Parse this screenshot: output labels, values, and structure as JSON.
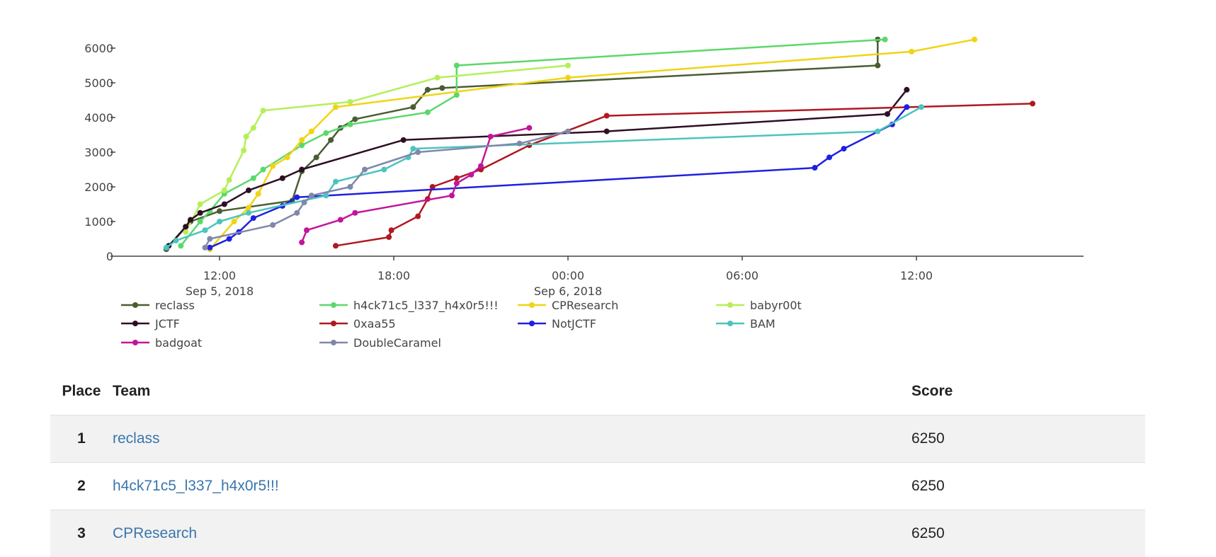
{
  "chart_data": {
    "type": "line",
    "xaxis": {
      "type": "date",
      "range": [
        "2018-09-05T08:30",
        "2018-09-06T14:00"
      ],
      "ticks": [
        {
          "t": "2018-09-05T12:00",
          "label": "12:00",
          "sublabel": "Sep 5, 2018"
        },
        {
          "t": "2018-09-05T18:00",
          "label": "18:00",
          "sublabel": ""
        },
        {
          "t": "2018-09-06T00:00",
          "label": "00:00",
          "sublabel": "Sep 6, 2018"
        },
        {
          "t": "2018-09-06T06:00",
          "label": "06:00",
          "sublabel": ""
        },
        {
          "t": "2018-09-06T12:00",
          "label": "12:00",
          "sublabel": ""
        }
      ]
    },
    "yaxis": {
      "range": [
        0,
        6300
      ],
      "ticks": [
        0,
        1000,
        2000,
        3000,
        4000,
        5000,
        6000
      ]
    },
    "legend_placement": "bottom",
    "series": [
      {
        "name": "reclass",
        "color": "#4a5d32",
        "points": [
          [
            "2018-09-05T10:10",
            200
          ],
          [
            "2018-09-05T11:00",
            1000
          ],
          [
            "2018-09-05T12:00",
            1300
          ],
          [
            "2018-09-05T14:30",
            1600
          ],
          [
            "2018-09-05T14:50",
            2450
          ],
          [
            "2018-09-05T15:20",
            2850
          ],
          [
            "2018-09-05T15:50",
            3350
          ],
          [
            "2018-09-05T16:10",
            3700
          ],
          [
            "2018-09-05T16:40",
            3950
          ],
          [
            "2018-09-05T18:40",
            4300
          ],
          [
            "2018-09-05T19:10",
            4800
          ],
          [
            "2018-09-05T19:40",
            4850
          ],
          [
            "2018-09-06T10:40",
            5500
          ],
          [
            "2018-09-06T10:40",
            6250
          ]
        ]
      },
      {
        "name": "h4ck71c5_l337_h4x0r5!!!",
        "color": "#5cd86a",
        "points": [
          [
            "2018-09-05T10:40",
            300
          ],
          [
            "2018-09-05T11:20",
            1000
          ],
          [
            "2018-09-05T11:40",
            1300
          ],
          [
            "2018-09-05T12:10",
            1800
          ],
          [
            "2018-09-05T13:10",
            2250
          ],
          [
            "2018-09-05T13:30",
            2500
          ],
          [
            "2018-09-05T14:50",
            3200
          ],
          [
            "2018-09-05T15:40",
            3550
          ],
          [
            "2018-09-05T16:30",
            3800
          ],
          [
            "2018-09-05T19:10",
            4150
          ],
          [
            "2018-09-05T20:10",
            4650
          ],
          [
            "2018-09-05T20:10",
            5500
          ],
          [
            "2018-09-06T10:55",
            6250
          ]
        ]
      },
      {
        "name": "CPResearch",
        "color": "#f0d415",
        "points": [
          [
            "2018-09-05T11:40",
            200
          ],
          [
            "2018-09-05T12:30",
            1000
          ],
          [
            "2018-09-05T13:00",
            1400
          ],
          [
            "2018-09-05T13:20",
            1800
          ],
          [
            "2018-09-05T13:50",
            2600
          ],
          [
            "2018-09-05T14:20",
            2850
          ],
          [
            "2018-09-05T14:50",
            3350
          ],
          [
            "2018-09-05T15:10",
            3600
          ],
          [
            "2018-09-05T16:00",
            4300
          ],
          [
            "2018-09-06T00:00",
            5150
          ],
          [
            "2018-09-06T11:50",
            5900
          ],
          [
            "2018-09-06T14:00",
            6250
          ]
        ]
      },
      {
        "name": "babyr00t",
        "color": "#b5ef58",
        "points": [
          [
            "2018-09-05T10:50",
            700
          ],
          [
            "2018-09-05T11:20",
            1500
          ],
          [
            "2018-09-05T12:10",
            1900
          ],
          [
            "2018-09-05T12:20",
            2200
          ],
          [
            "2018-09-05T12:50",
            3050
          ],
          [
            "2018-09-05T12:55",
            3450
          ],
          [
            "2018-09-05T13:10",
            3700
          ],
          [
            "2018-09-05T13:30",
            4200
          ],
          [
            "2018-09-05T16:30",
            4450
          ],
          [
            "2018-09-05T19:30",
            5150
          ],
          [
            "2018-09-06T00:00",
            5500
          ]
        ]
      },
      {
        "name": "JCTF",
        "color": "#2e0f24",
        "points": [
          [
            "2018-09-05T10:15",
            300
          ],
          [
            "2018-09-05T10:50",
            850
          ],
          [
            "2018-09-05T11:00",
            1050
          ],
          [
            "2018-09-05T11:20",
            1250
          ],
          [
            "2018-09-05T12:10",
            1500
          ],
          [
            "2018-09-05T13:00",
            1900
          ],
          [
            "2018-09-05T14:10",
            2250
          ],
          [
            "2018-09-05T14:50",
            2500
          ],
          [
            "2018-09-05T18:20",
            3350
          ],
          [
            "2018-09-06T01:20",
            3600
          ],
          [
            "2018-09-06T11:00",
            4100
          ],
          [
            "2018-09-06T11:40",
            4800
          ]
        ]
      },
      {
        "name": "0xaa55",
        "color": "#b01822",
        "points": [
          [
            "2018-09-05T16:00",
            300
          ],
          [
            "2018-09-05T17:50",
            550
          ],
          [
            "2018-09-05T17:55",
            750
          ],
          [
            "2018-09-05T18:50",
            1150
          ],
          [
            "2018-09-05T19:10",
            1650
          ],
          [
            "2018-09-05T19:20",
            2000
          ],
          [
            "2018-09-05T20:10",
            2250
          ],
          [
            "2018-09-05T21:00",
            2500
          ],
          [
            "2018-09-05T22:40",
            3200
          ],
          [
            "2018-09-06T01:20",
            4050
          ],
          [
            "2018-09-06T16:00",
            4400
          ]
        ]
      },
      {
        "name": "NotJCTF",
        "color": "#2020e0",
        "points": [
          [
            "2018-09-05T11:40",
            250
          ],
          [
            "2018-09-05T12:20",
            500
          ],
          [
            "2018-09-05T12:40",
            700
          ],
          [
            "2018-09-05T13:10",
            1100
          ],
          [
            "2018-09-05T14:10",
            1450
          ],
          [
            "2018-09-05T14:40",
            1700
          ],
          [
            "2018-09-06T08:30",
            2550
          ],
          [
            "2018-09-06T09:00",
            2850
          ],
          [
            "2018-09-06T09:30",
            3100
          ],
          [
            "2018-09-06T11:10",
            3800
          ],
          [
            "2018-09-06T11:40",
            4300
          ]
        ]
      },
      {
        "name": "BAM",
        "color": "#4dc4bd",
        "points": [
          [
            "2018-09-05T10:10",
            250
          ],
          [
            "2018-09-05T10:30",
            450
          ],
          [
            "2018-09-05T11:30",
            750
          ],
          [
            "2018-09-05T12:00",
            1000
          ],
          [
            "2018-09-05T13:00",
            1250
          ],
          [
            "2018-09-05T15:40",
            1750
          ],
          [
            "2018-09-05T16:00",
            2150
          ],
          [
            "2018-09-05T17:40",
            2500
          ],
          [
            "2018-09-05T18:30",
            2850
          ],
          [
            "2018-09-05T18:40",
            3100
          ],
          [
            "2018-09-06T10:40",
            3600
          ],
          [
            "2018-09-06T12:10",
            4300
          ]
        ]
      },
      {
        "name": "badgoat",
        "color": "#c2159a",
        "points": [
          [
            "2018-09-05T14:50",
            400
          ],
          [
            "2018-09-05T15:00",
            750
          ],
          [
            "2018-09-05T16:10",
            1050
          ],
          [
            "2018-09-05T16:40",
            1250
          ],
          [
            "2018-09-05T20:00",
            1750
          ],
          [
            "2018-09-05T20:10",
            2100
          ],
          [
            "2018-09-05T20:40",
            2350
          ],
          [
            "2018-09-05T21:00",
            2600
          ],
          [
            "2018-09-05T21:20",
            3450
          ],
          [
            "2018-09-05T22:40",
            3700
          ]
        ]
      },
      {
        "name": "DoubleCaramel",
        "color": "#8088aa",
        "points": [
          [
            "2018-09-05T11:30",
            250
          ],
          [
            "2018-09-05T11:40",
            500
          ],
          [
            "2018-09-05T13:50",
            900
          ],
          [
            "2018-09-05T14:40",
            1250
          ],
          [
            "2018-09-05T14:55",
            1550
          ],
          [
            "2018-09-05T15:10",
            1750
          ],
          [
            "2018-09-05T16:30",
            2000
          ],
          [
            "2018-09-05T17:00",
            2500
          ],
          [
            "2018-09-05T18:50",
            3000
          ],
          [
            "2018-09-05T22:20",
            3250
          ],
          [
            "2018-09-06T00:00",
            3600
          ]
        ]
      }
    ]
  },
  "table": {
    "headers": {
      "place": "Place",
      "team": "Team",
      "score": "Score"
    },
    "rows": [
      {
        "place": "1",
        "team": "reclass",
        "score": "6250"
      },
      {
        "place": "2",
        "team": "h4ck71c5_l337_h4x0r5!!!",
        "score": "6250"
      },
      {
        "place": "3",
        "team": "CPResearch",
        "score": "6250"
      }
    ]
  }
}
